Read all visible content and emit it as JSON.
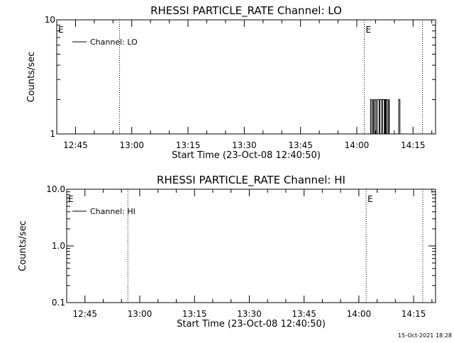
{
  "footer": {
    "date_stamp": "15-Oct-2021 18:28"
  },
  "colors": {
    "background": "#ffffff",
    "foreground": "#000000"
  },
  "chart_data": [
    {
      "type": "line",
      "title": "RHESSI PARTICLE_RATE Channel: LO",
      "xlabel": "Start Time (23-Oct-08 12:40:50)",
      "ylabel": "Counts/sec",
      "y_scale": "log",
      "ylim": [
        1,
        10
      ],
      "y_ticks": [
        {
          "value": 1,
          "label": "1"
        },
        {
          "value": 10,
          "label": "10"
        }
      ],
      "xlim": [
        "12:40:00",
        "14:21:00"
      ],
      "x_ticks": [
        "12:45",
        "13:00",
        "13:15",
        "13:30",
        "13:45",
        "14:00",
        "14:15"
      ],
      "vlines": [
        {
          "time": "12:56:45",
          "label": ""
        },
        {
          "time": "14:02:00",
          "label": "E"
        },
        {
          "time": "14:17:30",
          "label": ""
        }
      ],
      "edge_labels": [
        {
          "time": "12:40:00",
          "label": "E"
        }
      ],
      "legend": {
        "position": "top-left",
        "entries": [
          "Channel: LO"
        ]
      },
      "series": [
        {
          "name": "Channel: LO",
          "x": [
            "14:03:20",
            "14:03:30",
            "14:03:40",
            "14:03:50",
            "14:04:00",
            "14:04:10",
            "14:04:20",
            "14:04:30",
            "14:04:40",
            "14:04:50",
            "14:05:00",
            "14:05:10",
            "14:05:20",
            "14:05:30",
            "14:05:40",
            "14:05:50",
            "14:06:00",
            "14:06:10",
            "14:06:20",
            "14:06:30",
            "14:06:40",
            "14:06:50",
            "14:07:00",
            "14:07:10",
            "14:07:20",
            "14:07:30",
            "14:07:40",
            "14:07:50",
            "14:08:00",
            "14:08:10",
            "14:08:20",
            "14:08:30",
            "14:08:40",
            "14:08:50",
            "14:09:00",
            "14:09:10",
            "14:09:20",
            "14:09:30",
            "14:09:40",
            "14:09:50",
            "14:10:00",
            "14:10:10",
            "14:10:20",
            "14:10:30",
            "14:10:40",
            "14:10:50",
            "14:11:00",
            "14:11:10",
            "14:11:20",
            "14:11:30",
            "14:11:40",
            "14:11:50",
            "14:12:00",
            "14:12:10",
            "14:12:20",
            "14:12:30"
          ],
          "y": [
            1,
            1,
            2,
            2,
            1,
            1,
            2,
            1,
            1,
            2,
            2,
            1,
            1,
            2,
            2,
            2,
            1,
            2,
            2,
            2,
            1,
            2,
            2,
            2,
            1,
            2,
            1,
            2,
            2,
            1,
            1,
            2,
            1,
            1,
            1,
            1,
            1,
            1,
            1,
            1,
            1,
            1,
            1,
            1,
            1,
            1,
            1,
            2,
            2,
            1,
            1,
            1,
            1,
            1,
            1,
            1
          ]
        }
      ]
    },
    {
      "type": "line",
      "title": "RHESSI PARTICLE_RATE Channel: HI",
      "xlabel": "Start Time (23-Oct-08 12:40:50)",
      "ylabel": "Counts/sec",
      "y_scale": "log",
      "ylim": [
        0.1,
        10
      ],
      "y_ticks": [
        {
          "value": 0.1,
          "label": "0.1"
        },
        {
          "value": 1,
          "label": "1.0"
        },
        {
          "value": 10,
          "label": "10.0"
        }
      ],
      "xlim": [
        "12:40:00",
        "14:21:00"
      ],
      "x_ticks": [
        "12:45",
        "13:00",
        "13:15",
        "13:30",
        "13:45",
        "14:00",
        "14:15"
      ],
      "vlines": [
        {
          "time": "12:56:45",
          "label": ""
        },
        {
          "time": "14:02:00",
          "label": "E"
        },
        {
          "time": "14:17:30",
          "label": ""
        }
      ],
      "edge_labels": [
        {
          "time": "12:40:00",
          "label": "E"
        }
      ],
      "legend": {
        "position": "top-left",
        "entries": [
          "Channel: HI"
        ]
      },
      "series": [
        {
          "name": "Channel: HI",
          "x": [],
          "y": []
        }
      ]
    }
  ]
}
